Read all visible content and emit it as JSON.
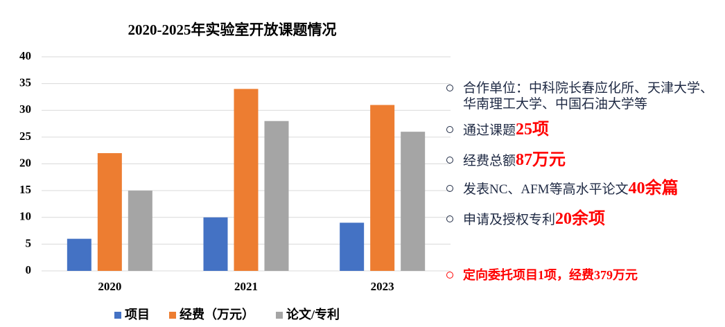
{
  "chart_data": {
    "type": "bar",
    "title": "2020-2025年实验室开放课题情况",
    "categories": [
      "2020",
      "2021",
      "2023"
    ],
    "series": [
      {
        "name": "项目",
        "color": "#4472c4",
        "values": [
          6,
          10,
          9
        ]
      },
      {
        "name": "经费（万元）",
        "color": "#ed7d31",
        "values": [
          22,
          34,
          31
        ]
      },
      {
        "name": "论文/专利",
        "color": "#a5a5a5",
        "values": [
          15,
          28,
          26
        ]
      }
    ],
    "ylim": [
      0,
      40
    ],
    "yticks": [
      0,
      5,
      10,
      15,
      20,
      25,
      30,
      35,
      40
    ],
    "grid": true,
    "legend": "bottom"
  },
  "notes": [
    {
      "text": "合作单位：中科院长春应化所、天津大学、华南理工大学、中国石油大学等"
    },
    {
      "text": "通过课题",
      "highlight": "25项"
    },
    {
      "text": "经费总额",
      "highlight": "87万元"
    },
    {
      "text": "发表NC、AFM等高水平论文",
      "highlight": "40余篇"
    },
    {
      "text": "申请及授权专利",
      "highlight": "20余项"
    },
    {
      "text": "定向委托项目1项，经费379万元",
      "emphasis": true
    }
  ]
}
